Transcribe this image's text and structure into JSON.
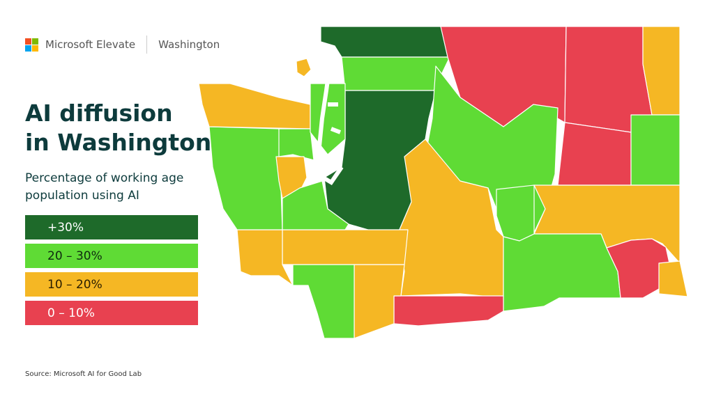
{
  "header": {
    "brand": "Microsoft Elevate",
    "region": "Washington"
  },
  "title_line1": "AI diffusion",
  "title_line2": "in Washington",
  "subtitle": "Percentage of working age population using AI",
  "legend": [
    {
      "label": "+30%",
      "color": "#1e6a2a",
      "text_color": "#ffffff"
    },
    {
      "label": "20 – 30%",
      "color": "#5fdb35",
      "text_color": "#0f2a10"
    },
    {
      "label": "10 – 20%",
      "color": "#f5b724",
      "text_color": "#2a1e00"
    },
    {
      "label": "0 – 10%",
      "color": "#e84150",
      "text_color": "#ffffff"
    }
  ],
  "source": "Source: Microsoft AI for Good Lab",
  "logo_colors": [
    "#f25022",
    "#7fba00",
    "#00a4ef",
    "#ffb900"
  ]
}
